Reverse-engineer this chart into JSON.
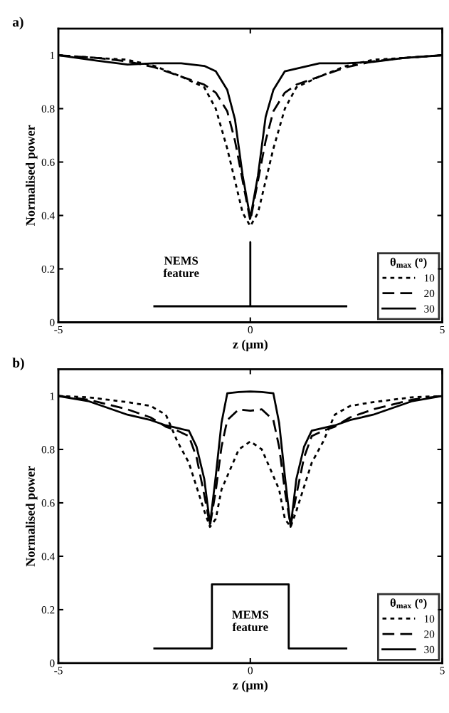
{
  "chart_data": [
    {
      "type": "line",
      "title": "a)",
      "xlabel": "z (μm)",
      "ylabel": "Normalised power",
      "legend_title": "θ$_{max}$ ($^{o}$)",
      "legend": "bottom right",
      "x": [
        -5,
        -4,
        -3.2,
        -2.5,
        -1.8,
        -1.2,
        -0.9,
        -0.6,
        -0.4,
        -0.2,
        0,
        0.2,
        0.4,
        0.6,
        0.9,
        1.2,
        1.8,
        2.5,
        3.2,
        4,
        5
      ],
      "xlim": [
        -5,
        5
      ],
      "xticks": [
        -5,
        0,
        5
      ],
      "ylim": [
        0,
        1.1
      ],
      "yticks": [
        0,
        0.2,
        0.4,
        0.6,
        0.8,
        1
      ],
      "grid": false,
      "marker": "none",
      "series": [
        {
          "name": "10",
          "color": "#000000",
          "line_style": "dotted",
          "values": [
            1.0,
            0.99,
            0.983,
            0.96,
            0.92,
            0.88,
            0.8,
            0.65,
            0.53,
            0.41,
            0.36,
            0.41,
            0.53,
            0.65,
            0.8,
            0.88,
            0.92,
            0.96,
            0.983,
            0.99,
            1.0
          ]
        },
        {
          "name": "20",
          "color": "#000000",
          "line_style": "dashed",
          "values": [
            1.0,
            0.99,
            0.977,
            0.955,
            0.92,
            0.89,
            0.86,
            0.79,
            0.68,
            0.53,
            0.38,
            0.53,
            0.68,
            0.79,
            0.86,
            0.89,
            0.92,
            0.955,
            0.977,
            0.99,
            1.0
          ]
        },
        {
          "name": "30",
          "color": "#000000",
          "line_style": "solid",
          "values": [
            1.0,
            0.98,
            0.965,
            0.97,
            0.97,
            0.96,
            0.94,
            0.87,
            0.76,
            0.55,
            0.39,
            0.55,
            0.77,
            0.87,
            0.94,
            0.95,
            0.97,
            0.97,
            0.975,
            0.99,
            1.0
          ]
        },
        {
          "color": "#000000",
          "line_style": "solid",
          "x": [
            -2.5,
            0,
            0,
            0,
            2.5
          ],
          "values": [
            0.06,
            0.06,
            0.3,
            0.06,
            0.06
          ]
        }
      ],
      "annotations": [
        "NEMS\nfeature"
      ]
    },
    {
      "type": "line",
      "title": "b)",
      "xlabel": "z (μm)",
      "ylabel": "Normalised power",
      "legend_title": "θ$_{max}$ ($^{o}$)",
      "legend": "bottom right",
      "x": [
        -5,
        -4.2,
        -3.2,
        -2.6,
        -2.2,
        -1.9,
        -1.6,
        -1.4,
        -1.2,
        -1.05,
        -0.9,
        -0.75,
        -0.6,
        -0.3,
        0,
        0.3,
        0.6,
        0.75,
        0.9,
        1.05,
        1.2,
        1.4,
        1.6,
        1.9,
        2.2,
        2.6,
        3.2,
        4.2,
        5
      ],
      "xlim": [
        -5,
        5
      ],
      "xticks": [
        -5,
        0,
        5
      ],
      "ylim": [
        0,
        1.1
      ],
      "yticks": [
        0,
        0.2,
        0.4,
        0.6,
        0.8,
        1
      ],
      "grid": false,
      "marker": "none",
      "series": [
        {
          "name": "10",
          "color": "#000000",
          "line_style": "dotted",
          "values": [
            1.0,
            0.995,
            0.977,
            0.963,
            0.93,
            0.83,
            0.75,
            0.66,
            0.57,
            0.51,
            0.54,
            0.65,
            0.7,
            0.8,
            0.83,
            0.8,
            0.7,
            0.65,
            0.54,
            0.51,
            0.57,
            0.66,
            0.75,
            0.83,
            0.93,
            0.963,
            0.977,
            0.995,
            1.0
          ]
        },
        {
          "name": "20",
          "color": "#000000",
          "line_style": "dashed",
          "values": [
            1.0,
            0.986,
            0.95,
            0.92,
            0.885,
            0.87,
            0.85,
            0.77,
            0.63,
            0.515,
            0.645,
            0.81,
            0.91,
            0.95,
            0.945,
            0.95,
            0.91,
            0.81,
            0.645,
            0.515,
            0.63,
            0.77,
            0.85,
            0.87,
            0.885,
            0.92,
            0.95,
            0.986,
            1.0
          ]
        },
        {
          "name": "30",
          "color": "#000000",
          "line_style": "solid",
          "values": [
            1.0,
            0.98,
            0.93,
            0.91,
            0.89,
            0.88,
            0.87,
            0.81,
            0.69,
            0.52,
            0.7,
            0.9,
            1.01,
            1.015,
            1.017,
            1.015,
            1.01,
            0.9,
            0.7,
            0.51,
            0.69,
            0.81,
            0.87,
            0.88,
            0.89,
            0.91,
            0.93,
            0.98,
            1.0
          ]
        },
        {
          "color": "#000000",
          "line_style": "solid",
          "x": [
            -2.5,
            -1.0,
            -1.0,
            1.0,
            1.0,
            2.5
          ],
          "values": [
            0.055,
            0.055,
            0.295,
            0.295,
            0.055,
            0.055
          ]
        }
      ],
      "annotations": [
        "MEMS\nfeature"
      ]
    }
  ]
}
